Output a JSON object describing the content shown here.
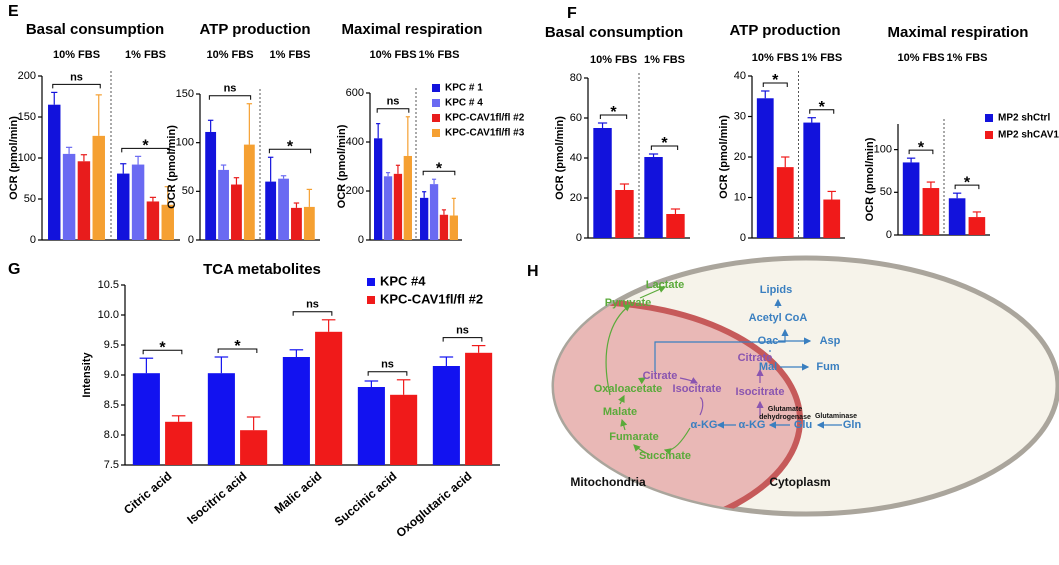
{
  "chart_data": [
    {
      "type": "bar",
      "panel": "E",
      "title": "Basal consumption",
      "ylabel": "OCR (pmol/min)",
      "categories": [
        "10% FBS",
        "1% FBS"
      ],
      "series": [
        {
          "color": "#1212dc",
          "values": [
            165,
            81
          ],
          "errors": [
            15,
            12
          ]
        },
        {
          "color": "#6a6af2",
          "values": [
            105,
            92
          ],
          "errors": [
            8,
            10
          ]
        },
        {
          "color": "#e81c1c",
          "values": [
            96,
            47
          ],
          "errors": [
            8,
            5
          ]
        },
        {
          "color": "#f5a032",
          "values": [
            127,
            43
          ],
          "errors": [
            50,
            22
          ]
        }
      ],
      "ylim": [
        0,
        200
      ],
      "yticks": [
        0,
        50,
        100,
        150,
        200
      ],
      "annotations": [
        "ns",
        "*"
      ]
    },
    {
      "type": "bar",
      "title": "ATP production",
      "ylabel": "OCR (pmol/min)",
      "categories": [
        "10% FBS",
        "1% FBS"
      ],
      "series": [
        {
          "color": "#1212dc",
          "values": [
            111,
            60
          ],
          "errors": [
            12,
            25
          ]
        },
        {
          "color": "#6a6af2",
          "values": [
            72,
            63
          ],
          "errors": [
            5,
            3
          ]
        },
        {
          "color": "#e81c1c",
          "values": [
            57,
            33
          ],
          "errors": [
            7,
            5
          ]
        },
        {
          "color": "#f5a032",
          "values": [
            98,
            34
          ],
          "errors": [
            42,
            18
          ]
        }
      ],
      "ylim": [
        0,
        150
      ],
      "yticks": [
        0,
        50,
        100,
        150
      ],
      "annotations": [
        "ns",
        "*"
      ]
    },
    {
      "type": "bar",
      "title": "Maximal respiration",
      "ylabel": "OCR (pmol/min)",
      "categories": [
        "10% FBS",
        "1% FBS"
      ],
      "series": [
        {
          "name": "KPC # 1",
          "color": "#1212dc",
          "values": [
            415,
            172
          ],
          "errors": [
            60,
            25
          ]
        },
        {
          "name": "KPC # 4",
          "color": "#6a6af2",
          "values": [
            260,
            228
          ],
          "errors": [
            15,
            20
          ]
        },
        {
          "name": "KPC-CAV1fl/fl #2",
          "color": "#e81c1c",
          "values": [
            270,
            103
          ],
          "errors": [
            35,
            20
          ]
        },
        {
          "name": "KPC-CAV1fl/fl #3",
          "color": "#f5a032",
          "values": [
            343,
            100
          ],
          "errors": [
            160,
            70
          ]
        }
      ],
      "ylim": [
        0,
        600
      ],
      "yticks": [
        0,
        200,
        400,
        600
      ],
      "annotations": [
        "ns",
        "*"
      ]
    },
    {
      "type": "bar",
      "panel": "F",
      "title": "Basal consumption",
      "ylabel": "OCR (pmol/min)",
      "categories": [
        "10% FBS",
        "1% FBS"
      ],
      "series": [
        {
          "color": "#1212dc",
          "values": [
            55,
            40.5
          ],
          "errors": [
            2.5,
            1.5
          ]
        },
        {
          "color": "#f01a1a",
          "values": [
            24,
            12
          ],
          "errors": [
            3,
            2.5
          ]
        }
      ],
      "ylim": [
        0,
        80
      ],
      "yticks": [
        0,
        20,
        40,
        60,
        80
      ],
      "annotations": [
        "*",
        "*"
      ]
    },
    {
      "type": "bar",
      "title": "ATP production",
      "ylabel": "OCR (pmol/min)",
      "categories": [
        "10% FBS",
        "1% FBS"
      ],
      "series": [
        {
          "color": "#1212dc",
          "values": [
            34.5,
            28.5
          ],
          "errors": [
            1.8,
            1.2
          ]
        },
        {
          "color": "#f01a1a",
          "values": [
            17.5,
            9.5
          ],
          "errors": [
            2.5,
            2
          ]
        }
      ],
      "ylim": [
        0,
        40
      ],
      "yticks": [
        0,
        10,
        20,
        30,
        40
      ],
      "annotations": [
        "*",
        "*"
      ]
    },
    {
      "type": "bar",
      "title": "Maximal respiration",
      "ylabel": "OCR (pmol/min)",
      "categories": [
        "10% FBS",
        "1% FBS"
      ],
      "series": [
        {
          "name": "MP2 shCtrl",
          "color": "#1212dc",
          "values": [
            85,
            43
          ],
          "errors": [
            5,
            6
          ]
        },
        {
          "name": "MP2 shCAV1",
          "color": "#f01a1a",
          "values": [
            55,
            21
          ],
          "errors": [
            7,
            6
          ]
        }
      ],
      "ylim": [
        0,
        130
      ],
      "yticks": [
        0,
        50,
        100
      ],
      "annotations": [
        "*",
        "*"
      ]
    },
    {
      "type": "bar",
      "panel": "G",
      "title": "TCA metabolites",
      "ylabel": "Intensity",
      "categories": [
        "Citric acid",
        "Isocitric acid",
        "Malic acid",
        "Succinic acid",
        "Oxoglutaric acid"
      ],
      "series": [
        {
          "name": "KPC #4",
          "color": "#1212f0",
          "values": [
            9.03,
            9.03,
            9.3,
            8.8,
            9.15
          ],
          "errors": [
            0.25,
            0.27,
            0.12,
            0.1,
            0.15
          ]
        },
        {
          "name": "KPC-CAV1fl/fl #2",
          "color": "#f01a1a",
          "values": [
            8.22,
            8.08,
            9.72,
            8.67,
            9.37
          ],
          "errors": [
            0.1,
            0.22,
            0.2,
            0.25,
            0.12
          ]
        }
      ],
      "ylim": [
        7.5,
        10.5
      ],
      "yticks": [
        7.5,
        {
          "value": 8,
          "label": "8.0"
        },
        8.5,
        {
          "value": 9,
          "label": "9.0"
        },
        9.5,
        {
          "value": 10,
          "label": "10.0"
        },
        10.5
      ],
      "annotations": [
        "*",
        "*",
        "ns",
        "ns",
        "ns"
      ]
    }
  ],
  "diagram": {
    "panel": "H",
    "regions": [
      "Mitochondria",
      "Cytoplasm"
    ],
    "nodes": [
      "Lactate",
      "Pyruvate",
      "Lipids",
      "Acetyl CoA",
      "Oac",
      "Asp",
      "Mal",
      "Fum",
      "Citrate",
      "Citrate",
      "Oxaloacetate",
      "Isocitrate",
      "Isocitrate",
      "Malate",
      "Glutamate",
      "dehydrogenase",
      "Glutaminase",
      "α-KG",
      "α-KG",
      "Glu",
      "Gln",
      "Fumarate",
      "Succinate"
    ]
  }
}
